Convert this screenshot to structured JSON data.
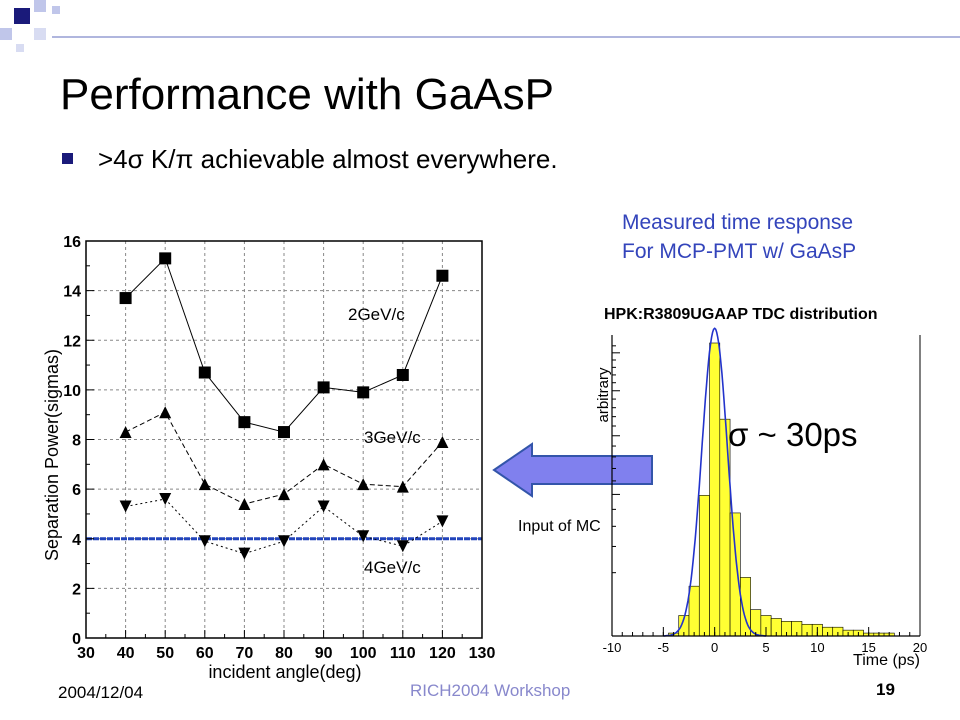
{
  "slide": {
    "title": "Performance with GaAsP",
    "bullet": ">4σ K/π achievable almost everywhere.",
    "caption_line1": "Measured time response",
    "caption_line2": "For MCP-PMT w/ GaAsP",
    "tdc_title": "HPK:R3809UGAAP TDC distribution",
    "sigma_label": "σ ~ 30ps",
    "mc_label": "Input of MC",
    "footer_date": "2004/12/04",
    "footer_center": "RICH2004 Workshop",
    "footer_page": "19",
    "colors": {
      "title": "#000000",
      "caption": "#3344bb",
      "footer_center": "#8888cc",
      "arrow_fill": "#8080ee",
      "arrow_stroke": "#3355aa",
      "hist_fill": "#ffff33",
      "fit_line": "#2233cc",
      "threshold_line": "#2244bb"
    }
  },
  "chart_data": [
    {
      "type": "line",
      "xlabel": "incident angle(deg)",
      "ylabel": "Separation Power(sigmas)",
      "xlim": [
        30,
        130
      ],
      "ylim": [
        0,
        16
      ],
      "xticks": [
        30,
        40,
        50,
        60,
        70,
        80,
        90,
        100,
        110,
        120,
        130
      ],
      "yticks": [
        0,
        2,
        4,
        6,
        8,
        10,
        12,
        14,
        16
      ],
      "grid": true,
      "x": [
        40,
        50,
        60,
        70,
        80,
        90,
        100,
        110,
        120
      ],
      "series": [
        {
          "name": "2GeV/c",
          "marker": "square",
          "line": "solid",
          "values": [
            13.7,
            15.3,
            10.7,
            8.7,
            8.3,
            10.1,
            9.9,
            10.6,
            14.6
          ]
        },
        {
          "name": "3GeV/c",
          "marker": "triangle-up",
          "line": "dashed",
          "values": [
            8.3,
            9.1,
            6.2,
            5.4,
            5.8,
            7.0,
            6.2,
            6.1,
            7.9
          ]
        },
        {
          "name": "4GeV/c",
          "marker": "triangle-down",
          "line": "dotted",
          "values": [
            5.3,
            5.6,
            3.9,
            3.4,
            3.9,
            5.3,
            4.1,
            3.7,
            4.7
          ]
        }
      ],
      "reference_line": {
        "y": 4,
        "color": "#2244bb"
      }
    },
    {
      "type": "histogram",
      "title": "HPK:R3809UGAAP TDC distribution",
      "xlabel": "Time (ps)",
      "ylabel": "arbitrary",
      "xlim": [
        -10,
        20
      ],
      "xticks": [
        -10,
        -5,
        0,
        5,
        10,
        15,
        20
      ],
      "bin_width": 1,
      "bins": [
        {
          "x": -4,
          "y": 0.01
        },
        {
          "x": -3,
          "y": 0.07
        },
        {
          "x": -2,
          "y": 0.17
        },
        {
          "x": -1,
          "y": 0.48
        },
        {
          "x": 0,
          "y": 1.0
        },
        {
          "x": 1,
          "y": 0.74
        },
        {
          "x": 2,
          "y": 0.42
        },
        {
          "x": 3,
          "y": 0.2
        },
        {
          "x": 4,
          "y": 0.09
        },
        {
          "x": 5,
          "y": 0.07
        },
        {
          "x": 6,
          "y": 0.06
        },
        {
          "x": 7,
          "y": 0.05
        },
        {
          "x": 8,
          "y": 0.05
        },
        {
          "x": 9,
          "y": 0.04
        },
        {
          "x": 10,
          "y": 0.04
        },
        {
          "x": 11,
          "y": 0.03
        },
        {
          "x": 12,
          "y": 0.03
        },
        {
          "x": 13,
          "y": 0.02
        },
        {
          "x": 14,
          "y": 0.02
        },
        {
          "x": 15,
          "y": 0.01
        },
        {
          "x": 16,
          "y": 0.01
        },
        {
          "x": 17,
          "y": 0.01
        },
        {
          "x": 18,
          "y": 0.0
        }
      ],
      "fit": "gaussian"
    }
  ]
}
